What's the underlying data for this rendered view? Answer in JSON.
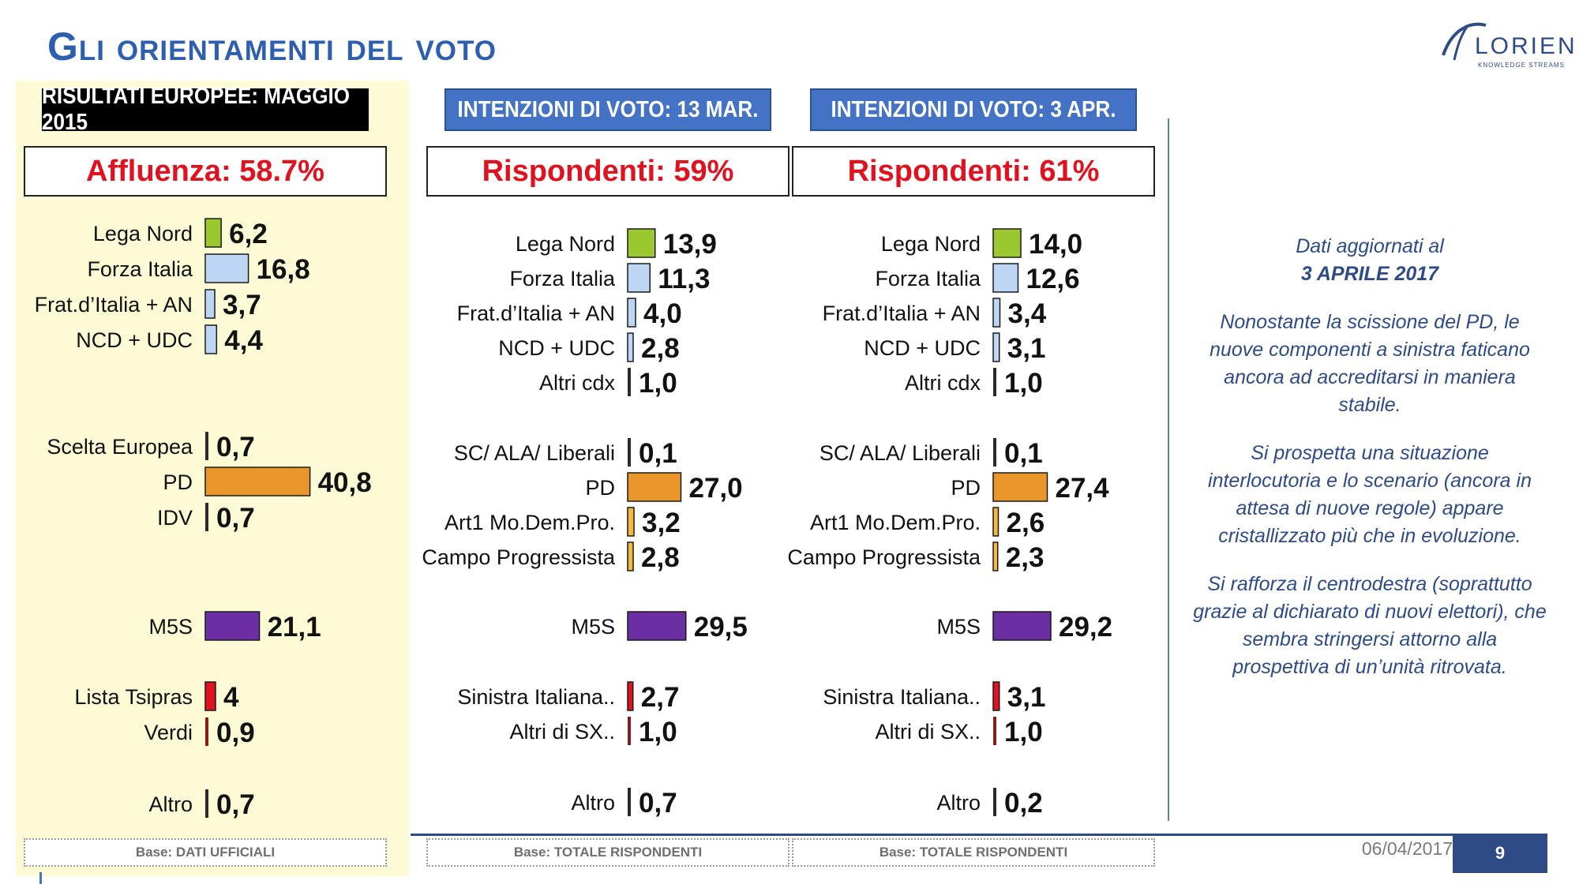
{
  "title": "Gli orientamenti del voto",
  "logo": {
    "name": "LORIEN",
    "tagline": "KNOWLEDGE STREAMS"
  },
  "colors": {
    "lega": "#9bc82e",
    "fi": "#bcd6f4",
    "small_blue": "#bcd6f4",
    "pd": "#e9972b",
    "small_orange": "#f4b843",
    "m5s": "#6b2fa3",
    "red": "#e0121f",
    "dark_red": "#8b1b1b",
    "neutral": "#2b2b2b"
  },
  "note": {
    "heading_line1": "Dati aggiornati al",
    "heading_line2": "3 APRILE 2017",
    "para1": "Nonostante la scissione del PD, le nuove componenti a sinistra faticano ancora ad accreditarsi in maniera stabile.",
    "para2": "Si prospetta una situazione interlocutoria e lo scenario (ancora in attesa di nuove regole) appare cristallizzato più che in evoluzione.",
    "para3": "Si rafforza il centrodestra (soprattutto grazie al dichiarato di nuovi elettori), che sembra stringersi attorno alla prospettiva di un’unità ritrovata."
  },
  "footer": {
    "date": "06/04/2017",
    "page": "9"
  },
  "chart_data": [
    {
      "type": "bar",
      "header": "RISULTATI EUROPEE:  MAGGIO 2015",
      "subheader": "Affluenza: 58.7%",
      "base": "Base: DATI UFFICIALI",
      "categories": [
        "Lega Nord",
        "Forza Italia",
        "Frat.d’Italia + AN",
        "NCD + UDC",
        "Scelta Europea",
        "PD",
        "IDV",
        "M5S",
        "Lista Tsipras",
        "Verdi",
        "Altro"
      ],
      "labels": [
        "6,2",
        "16,8",
        "3,7",
        "4,4",
        "0,7",
        "40,8",
        "0,7",
        "21,1",
        "4",
        "0,9",
        "0,7"
      ],
      "values": [
        6.2,
        16.8,
        3.7,
        4.4,
        0.7,
        40.8,
        0.7,
        21.1,
        4,
        0.9,
        0.7
      ],
      "colors": [
        "lega",
        "fi",
        "small_blue",
        "small_blue",
        "neutral",
        "pd",
        "neutral",
        "m5s",
        "red",
        "dark_red",
        "neutral"
      ]
    },
    {
      "type": "bar",
      "header": "INTENZIONI DI VOTO: 13 MAR.",
      "subheader": "Rispondenti: 59%",
      "base": "Base: TOTALE RISPONDENTI",
      "categories": [
        "Lega Nord",
        "Forza Italia",
        "Frat.d’Italia + AN",
        "NCD + UDC",
        "Altri cdx",
        "SC/ ALA/ Liberali",
        "PD",
        "Art1 Mo.Dem.Pro.",
        "Campo Progressista",
        "M5S",
        "Sinistra Italiana..",
        "Altri di SX..",
        "Altro"
      ],
      "labels": [
        "13,9",
        "11,3",
        "4,0",
        "2,8",
        "1,0",
        "0,1",
        "27,0",
        "3,2",
        "2,8",
        "29,5",
        "2,7",
        "1,0",
        "0,7"
      ],
      "values": [
        13.9,
        11.3,
        4.0,
        2.8,
        1.0,
        0.1,
        27.0,
        3.2,
        2.8,
        29.5,
        2.7,
        1.0,
        0.7
      ],
      "colors": [
        "lega",
        "fi",
        "small_blue",
        "small_blue",
        "neutral",
        "neutral",
        "pd",
        "small_orange",
        "small_orange",
        "m5s",
        "red",
        "dark_red",
        "neutral"
      ]
    },
    {
      "type": "bar",
      "header": "INTENZIONI DI VOTO: 3 APR.",
      "subheader": "Rispondenti: 61%",
      "base": "Base: TOTALE RISPONDENTI",
      "categories": [
        "Lega Nord",
        "Forza Italia",
        "Frat.d’Italia + AN",
        "NCD + UDC",
        "Altri cdx",
        "SC/ ALA/ Liberali",
        "PD",
        "Art1 Mo.Dem.Pro.",
        "Campo Progressista",
        "M5S",
        "Sinistra Italiana..",
        "Altri di SX..",
        "Altro"
      ],
      "labels": [
        "14,0",
        "12,6",
        "3,4",
        "3,1",
        "1,0",
        "0,1",
        "27,4",
        "2,6",
        "2,3",
        "29,2",
        "3,1",
        "1,0",
        "0,2"
      ],
      "values": [
        14.0,
        12.6,
        3.4,
        3.1,
        1.0,
        0.1,
        27.4,
        2.6,
        2.3,
        29.2,
        3.1,
        1.0,
        0.2
      ],
      "colors": [
        "lega",
        "fi",
        "small_blue",
        "small_blue",
        "neutral",
        "neutral",
        "pd",
        "small_orange",
        "small_orange",
        "m5s",
        "red",
        "dark_red",
        "neutral"
      ]
    }
  ]
}
